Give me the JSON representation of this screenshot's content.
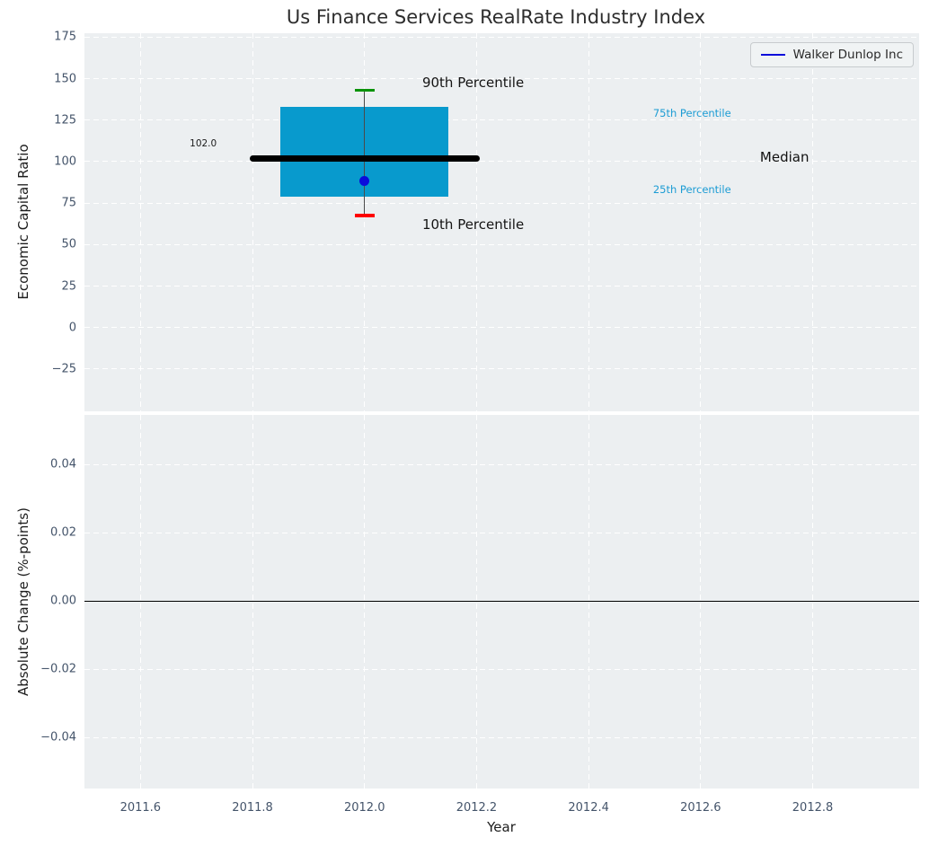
{
  "figure": {
    "title": "Us Finance Services RealRate Industry Index",
    "plot_background": "#eceff1",
    "grid_color": "#ffffff",
    "tick_color": "#44546a"
  },
  "legend": {
    "label": "Walker Dunlop Inc",
    "line_color": "#0b0bdb"
  },
  "chart_data": [
    {
      "type": "boxplot",
      "title": "Us Finance Services RealRate Industry Index",
      "ylabel": "Economic Capital Ratio",
      "xlim": [
        2011.5,
        2012.99
      ],
      "ylim": [
        -50.5,
        177.4
      ],
      "yticks": [
        175,
        150,
        125,
        100,
        75,
        50,
        25,
        0,
        -25
      ],
      "ytick_labels": [
        "175",
        "150",
        "125",
        "100",
        "75",
        "50",
        "25",
        "0",
        "−25"
      ],
      "xticks": [
        2011.6,
        2011.8,
        2012.0,
        2012.2,
        2012.4,
        2012.6,
        2012.8
      ],
      "grid": true,
      "legend_position": "upper right",
      "box": {
        "x": 2012.0,
        "box_left": 2011.85,
        "box_right": 2012.15,
        "p10": 67.5,
        "p25": 79,
        "median": 102.0,
        "p75": 133,
        "p90": 143,
        "box_color": "#089acd",
        "whisker_color": "#4a4a4a",
        "p90_cap_color": "#0a9309",
        "p10_cap_color": "#fe0000",
        "median_line_color": "#000000",
        "median_line_span": [
          2011.795,
          2012.205
        ],
        "cap_halfwidth": 0.018
      },
      "company_point": {
        "name": "Walker Dunlop Inc",
        "x": 2012.0,
        "y": 88.5,
        "color": "#0b0bdb"
      },
      "annotations": [
        {
          "text": "102.0",
          "x": 2011.712,
          "y": 111.0,
          "color": "#1a1a1a",
          "size": 10.5,
          "align": "center"
        },
        {
          "text": "90th Percentile",
          "x": 2012.103,
          "y": 147.5,
          "color": "#141414",
          "size": 15,
          "align": "left"
        },
        {
          "text": "10th Percentile",
          "x": 2012.103,
          "y": 62.0,
          "color": "#141414",
          "size": 15,
          "align": "left"
        },
        {
          "text": "75th Percentile",
          "x": 2012.515,
          "y": 129.0,
          "color": "#1c9cd4",
          "size": 11.5,
          "align": "left"
        },
        {
          "text": "25th Percentile",
          "x": 2012.515,
          "y": 83.0,
          "color": "#1c9cd4",
          "size": 11.5,
          "align": "left"
        },
        {
          "text": "Median",
          "x": 2012.706,
          "y": 102.5,
          "color": "#111111",
          "size": 15,
          "align": "left"
        }
      ]
    },
    {
      "type": "line",
      "ylabel": "Absolute Change (%-points)",
      "xlabel": "Year",
      "xlim": [
        2011.5,
        2012.99
      ],
      "ylim": [
        -0.0549,
        0.0546
      ],
      "yticks": [
        0.04,
        0.02,
        0.0,
        -0.02,
        -0.04
      ],
      "ytick_labels": [
        "0.04",
        "0.02",
        "0.00",
        "−0.02",
        "−0.04"
      ],
      "xticks": [
        2011.6,
        2011.8,
        2012.0,
        2012.2,
        2012.4,
        2012.6,
        2012.8
      ],
      "xtick_labels": [
        "2011.6",
        "2011.8",
        "2012.0",
        "2012.2",
        "2012.4",
        "2012.6",
        "2012.8"
      ],
      "grid": true,
      "series": [
        {
          "name": "Walker Dunlop Inc change",
          "x": [
            2011.5,
            2012.99
          ],
          "y": [
            0.0,
            0.0
          ],
          "color": "#000000",
          "linewidth": 1.8
        }
      ]
    }
  ]
}
